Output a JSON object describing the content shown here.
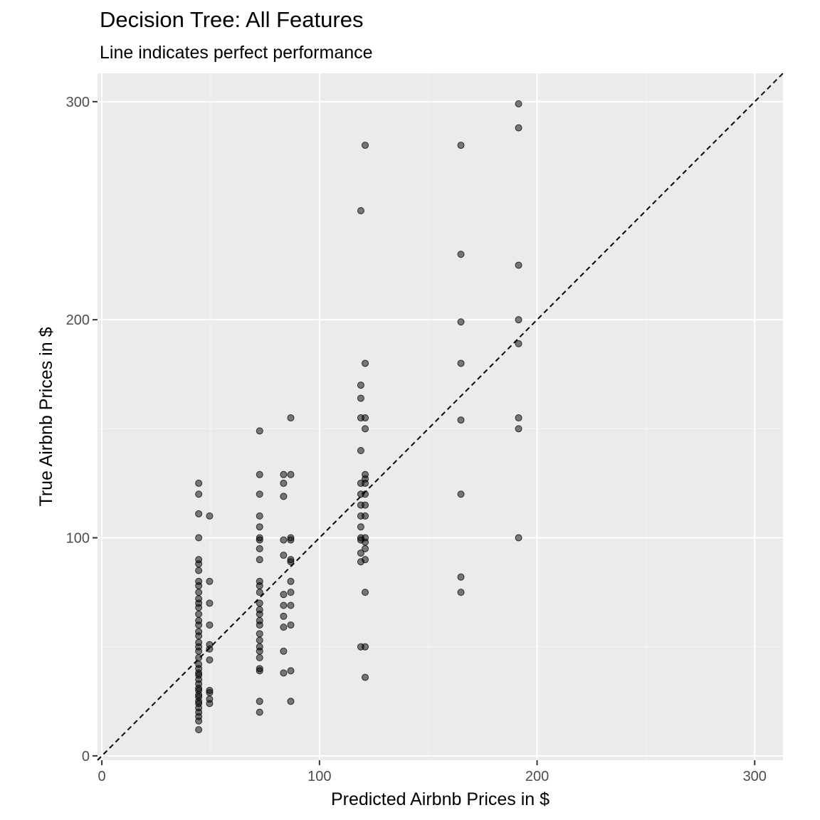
{
  "chart_data": {
    "type": "scatter",
    "title": "Decision Tree: All Features",
    "subtitle": "Line indicates perfect performance",
    "xlabel": "Predicted Airbnb Prices in $",
    "ylabel": "True Airbnb Prices in $",
    "xlim": [
      -2,
      313
    ],
    "ylim": [
      -2,
      313
    ],
    "x_ticks": [
      0,
      100,
      200,
      300
    ],
    "y_ticks": [
      0,
      100,
      200,
      300
    ],
    "grid": true,
    "reference_line": {
      "slope": 1,
      "intercept": 0,
      "style": "dashed",
      "color": "#000000"
    },
    "colors": {
      "panel": "#ebebeb",
      "grid_major": "#ffffff",
      "grid_minor": "#f5f5f5",
      "point": "#000000",
      "point_fill_opacity": 0.5,
      "tick_text": "#4d4d4d"
    },
    "points": [
      [
        44.5,
        12
      ],
      [
        44.5,
        16
      ],
      [
        44.5,
        18
      ],
      [
        44.5,
        20
      ],
      [
        44.5,
        22
      ],
      [
        44.5,
        24
      ],
      [
        44.5,
        25
      ],
      [
        44.5,
        27
      ],
      [
        44.5,
        28
      ],
      [
        44.5,
        30
      ],
      [
        44.5,
        31
      ],
      [
        44.5,
        33
      ],
      [
        44.5,
        35
      ],
      [
        44.5,
        37
      ],
      [
        44.5,
        38
      ],
      [
        44.5,
        40
      ],
      [
        44.5,
        42
      ],
      [
        44.5,
        45
      ],
      [
        44.5,
        48
      ],
      [
        44.5,
        50
      ],
      [
        44.5,
        52
      ],
      [
        44.5,
        55
      ],
      [
        44.5,
        57
      ],
      [
        44.5,
        60
      ],
      [
        44.5,
        62
      ],
      [
        44.5,
        65
      ],
      [
        44.5,
        68
      ],
      [
        44.5,
        70
      ],
      [
        44.5,
        72
      ],
      [
        44.5,
        75
      ],
      [
        44.5,
        78
      ],
      [
        44.5,
        80
      ],
      [
        44.5,
        85
      ],
      [
        44.5,
        88
      ],
      [
        44.5,
        90
      ],
      [
        44.5,
        100
      ],
      [
        44.5,
        111
      ],
      [
        44.5,
        120
      ],
      [
        44.5,
        125
      ],
      [
        49.5,
        24
      ],
      [
        49.5,
        26
      ],
      [
        49.5,
        29
      ],
      [
        49.5,
        30
      ],
      [
        49.5,
        44
      ],
      [
        49.5,
        49
      ],
      [
        49.5,
        51
      ],
      [
        49.5,
        60
      ],
      [
        49.5,
        70
      ],
      [
        49.5,
        80
      ],
      [
        49.5,
        110
      ],
      [
        72.5,
        20
      ],
      [
        72.5,
        25
      ],
      [
        72.5,
        39
      ],
      [
        72.5,
        40
      ],
      [
        72.5,
        45
      ],
      [
        72.5,
        48
      ],
      [
        72.5,
        50
      ],
      [
        72.5,
        53
      ],
      [
        72.5,
        56
      ],
      [
        72.5,
        60
      ],
      [
        72.5,
        62
      ],
      [
        72.5,
        65
      ],
      [
        72.5,
        67
      ],
      [
        72.5,
        70
      ],
      [
        72.5,
        75
      ],
      [
        72.5,
        78
      ],
      [
        72.5,
        80
      ],
      [
        72.5,
        90
      ],
      [
        72.5,
        95
      ],
      [
        72.5,
        99
      ],
      [
        72.5,
        100
      ],
      [
        72.5,
        105
      ],
      [
        72.5,
        110
      ],
      [
        72.5,
        120
      ],
      [
        72.5,
        129
      ],
      [
        72.5,
        149
      ],
      [
        83.5,
        38
      ],
      [
        83.5,
        48
      ],
      [
        83.5,
        59
      ],
      [
        83.5,
        64
      ],
      [
        83.5,
        69
      ],
      [
        83.5,
        74
      ],
      [
        83.5,
        92
      ],
      [
        83.5,
        99
      ],
      [
        83.5,
        119
      ],
      [
        83.5,
        125
      ],
      [
        83.5,
        129
      ],
      [
        86.8,
        25
      ],
      [
        86.8,
        39
      ],
      [
        86.8,
        60
      ],
      [
        86.8,
        69
      ],
      [
        86.8,
        75
      ],
      [
        86.8,
        80
      ],
      [
        86.8,
        89
      ],
      [
        86.8,
        90
      ],
      [
        86.8,
        99
      ],
      [
        86.8,
        100
      ],
      [
        86.8,
        129
      ],
      [
        86.8,
        155
      ],
      [
        119,
        50
      ],
      [
        119,
        89
      ],
      [
        119,
        93
      ],
      [
        119,
        99
      ],
      [
        119,
        100
      ],
      [
        119,
        105
      ],
      [
        119,
        110
      ],
      [
        119,
        115
      ],
      [
        119,
        120
      ],
      [
        119,
        125
      ],
      [
        119,
        140
      ],
      [
        119,
        155
      ],
      [
        119,
        164
      ],
      [
        119,
        170
      ],
      [
        119,
        250
      ],
      [
        121,
        36
      ],
      [
        121,
        50
      ],
      [
        121,
        75
      ],
      [
        121,
        90
      ],
      [
        121,
        95
      ],
      [
        121,
        98
      ],
      [
        121,
        100
      ],
      [
        121,
        110
      ],
      [
        121,
        115
      ],
      [
        121,
        120
      ],
      [
        121,
        125
      ],
      [
        121,
        127
      ],
      [
        121,
        129
      ],
      [
        121,
        150
      ],
      [
        121,
        155
      ],
      [
        121,
        180
      ],
      [
        121,
        280
      ],
      [
        165,
        75
      ],
      [
        165,
        82
      ],
      [
        165,
        120
      ],
      [
        165,
        154
      ],
      [
        165,
        180
      ],
      [
        165,
        199
      ],
      [
        165,
        230
      ],
      [
        165,
        280
      ],
      [
        191.5,
        100
      ],
      [
        191.5,
        150
      ],
      [
        191.5,
        155
      ],
      [
        191.5,
        189
      ],
      [
        191.5,
        200
      ],
      [
        191.5,
        225
      ],
      [
        191.5,
        288
      ],
      [
        191.5,
        299
      ]
    ]
  }
}
